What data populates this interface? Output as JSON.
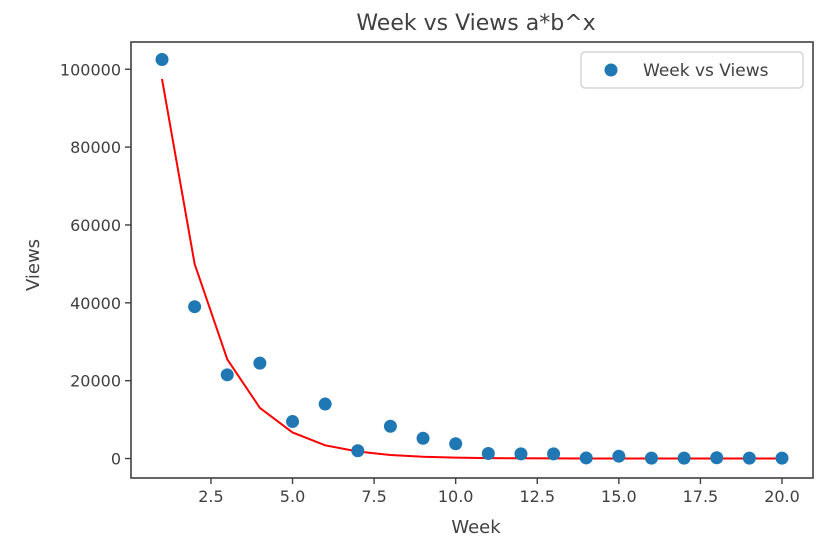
{
  "chart_data": {
    "type": "scatter",
    "title": "Week vs Views a*b^x",
    "xlabel": "Week",
    "ylabel": "Views",
    "xlim": [
      0.05,
      20.95
    ],
    "ylim": [
      -5000,
      107000
    ],
    "xticks": [
      2.5,
      5.0,
      7.5,
      10.0,
      12.5,
      15.0,
      17.5,
      20.0
    ],
    "xtick_labels": [
      "2.5",
      "5.0",
      "7.5",
      "10.0",
      "12.5",
      "15.0",
      "17.5",
      "20.0"
    ],
    "yticks": [
      0,
      20000,
      40000,
      60000,
      80000,
      100000
    ],
    "ytick_labels": [
      "0",
      "20000",
      "40000",
      "60000",
      "80000",
      "100000"
    ],
    "grid": false,
    "legend_position": "top-right",
    "series": [
      {
        "name": "Week vs Views",
        "type": "scatter",
        "color": "#1f77b4",
        "x": [
          1,
          2,
          3,
          4,
          5,
          6,
          7,
          8,
          9,
          10,
          11,
          12,
          13,
          14,
          15,
          16,
          17,
          18,
          19,
          20
        ],
        "y": [
          102500,
          39000,
          21500,
          24500,
          9500,
          14000,
          2000,
          8300,
          5200,
          3800,
          1300,
          1200,
          1200,
          150,
          600,
          100,
          100,
          200,
          100,
          100
        ]
      },
      {
        "type": "line",
        "color": "#ff0000",
        "x": [
          1,
          2,
          3,
          4,
          5,
          6,
          7,
          8,
          9,
          10,
          11,
          12,
          13,
          14,
          15,
          16,
          17,
          18,
          19,
          20
        ],
        "y": [
          97500,
          50000,
          25500,
          13000,
          6700,
          3400,
          1800,
          900,
          470,
          240,
          120,
          62,
          32,
          16,
          8,
          4,
          2,
          1,
          0.5,
          0.3
        ]
      }
    ],
    "legend_entries": [
      "Week vs Views"
    ]
  }
}
